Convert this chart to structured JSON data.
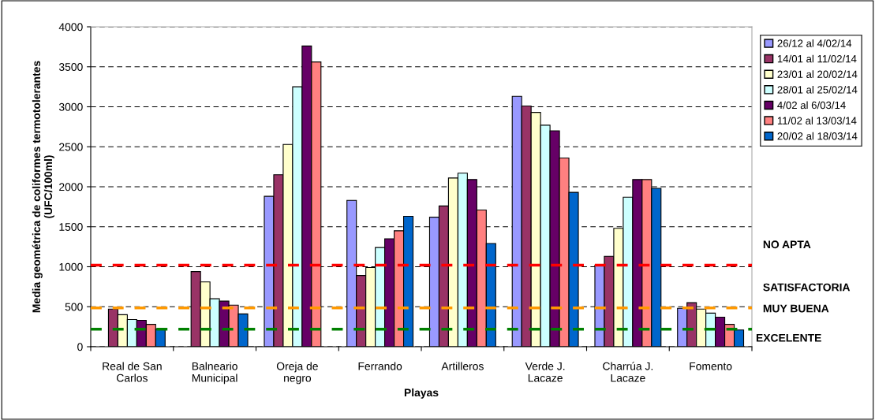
{
  "chart_data": {
    "type": "bar",
    "xlabel": "Playas",
    "ylabel": "Media geométrica de coliformes termotolerantes\n(UFC/100ml)",
    "categories": [
      "Real de San\nCarlos",
      "Balneario\nMunicipal",
      "Oreja de\nnegro",
      "Ferrando",
      "Artilleros",
      "Verde J.\nLacaze",
      "Charrúa J.\nLacaze",
      "Fomento"
    ],
    "series": [
      {
        "name": "26/12 al 4/02/14",
        "color": "#9999ff",
        "values": [
          null,
          null,
          1880,
          1830,
          1620,
          3130,
          1020,
          480
        ]
      },
      {
        "name": "14/01 al 11/02/14",
        "color": "#993366",
        "values": [
          470,
          940,
          2150,
          890,
          1760,
          3010,
          1130,
          550
        ]
      },
      {
        "name": "23/01 al 20/02/14",
        "color": "#ffffcc",
        "values": [
          400,
          810,
          2530,
          990,
          2110,
          2930,
          1480,
          470
        ]
      },
      {
        "name": "28/01 al 25/02/14",
        "color": "#ccffff",
        "values": [
          340,
          600,
          3250,
          1240,
          2170,
          2770,
          1870,
          420
        ]
      },
      {
        "name": "4/02 al 6/03/14",
        "color": "#660066",
        "values": [
          330,
          570,
          3760,
          1350,
          2090,
          2700,
          2090,
          370
        ]
      },
      {
        "name": "11/02 al 13/03/14",
        "color": "#ff8080",
        "values": [
          280,
          520,
          3560,
          1450,
          1710,
          2360,
          2090,
          280
        ]
      },
      {
        "name": "20/02 al 18/03/14",
        "color": "#0066cc",
        "values": [
          220,
          410,
          null,
          1630,
          1290,
          1930,
          1980,
          210
        ]
      }
    ],
    "ylim": [
      0,
      4000
    ],
    "yticks": [
      0,
      500,
      1000,
      1500,
      2000,
      2500,
      3000,
      3500,
      4000
    ],
    "grid": "y",
    "legend": "top right",
    "ref_lines": [
      {
        "axis": "y",
        "value": 1020,
        "label": "NO APTA",
        "color": "#ff0000",
        "line_style": "dashed"
      },
      {
        "axis": "y",
        "value": 485,
        "label": "SATISFACTORIA",
        "color": "#ff9900",
        "line_style": "dashed"
      },
      {
        "axis": "y",
        "value": 220,
        "label": "MUY BUENA",
        "color": "#008000",
        "line_style": "dashed"
      }
    ],
    "annotations": [
      "EXCELENTE"
    ]
  }
}
